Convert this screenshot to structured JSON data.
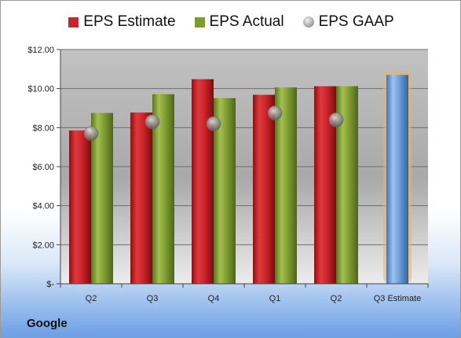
{
  "chart_data": {
    "type": "bar",
    "categories": [
      "Q2",
      "Q3",
      "Q4",
      "Q1",
      "Q2",
      "Q3 Estimate"
    ],
    "series": [
      {
        "name": "EPS Estimate",
        "values": [
          7.85,
          8.77,
          10.48,
          9.68,
          10.12,
          null
        ],
        "color": "#c8242a"
      },
      {
        "name": "EPS Actual",
        "values": [
          8.75,
          9.71,
          9.51,
          10.06,
          10.12,
          null
        ],
        "color": "#7e9b32"
      },
      {
        "name": "EPS GAAP",
        "values": [
          7.7,
          8.3,
          8.2,
          8.75,
          8.4,
          null
        ],
        "color": "#9a9a9a",
        "marker": "circle"
      }
    ],
    "highlight": {
      "category": "Q3 Estimate",
      "value": 10.7,
      "color": "#6a9ed8",
      "glow": "#f0b060"
    },
    "yticks": [
      "$-",
      "$2.00",
      "$4.00",
      "$6.00",
      "$8.00",
      "$10.00",
      "$12.00"
    ],
    "ylim": [
      0,
      12
    ],
    "grid": true,
    "legend_position": "top"
  },
  "footer": {
    "company": "Google"
  }
}
